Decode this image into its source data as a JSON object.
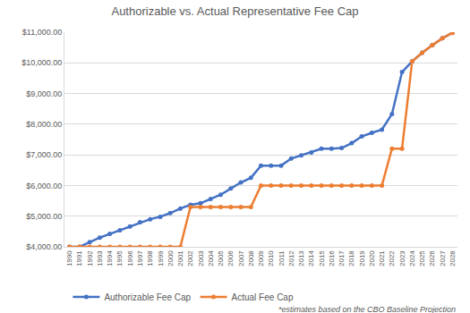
{
  "chart_data": {
    "type": "line",
    "title": "Authorizable vs. Actual Representative Fee Cap",
    "categories": [
      "1990",
      "1991",
      "1992",
      "1993",
      "1994",
      "1995",
      "1996",
      "1997",
      "1998",
      "1999",
      "2000",
      "2001",
      "2002",
      "2003",
      "2004",
      "2005",
      "2006",
      "2007",
      "2008",
      "2009",
      "2010",
      "2011",
      "2012",
      "2013",
      "2014",
      "2015",
      "2016",
      "2017",
      "2018",
      "2019",
      "2020",
      "2021",
      "2022",
      "2023",
      "2024",
      "2025",
      "2026",
      "2027",
      "2028"
    ],
    "series": [
      {
        "name": "Authorizable Fee Cap",
        "color": "#4472c4",
        "marker": "circle",
        "values": [
          4000,
          4000,
          4150,
          4300,
          4420,
          4540,
          4660,
          4800,
          4900,
          4980,
          5100,
          5250,
          5370,
          5420,
          5560,
          5700,
          5900,
          6100,
          6250,
          6650,
          6650,
          6650,
          6880,
          6980,
          7080,
          7200,
          7200,
          7220,
          7380,
          7600,
          7720,
          7820,
          8330,
          9700,
          10050,
          10330,
          10580,
          10800,
          10980
        ]
      },
      {
        "name": "Actual Fee Cap",
        "color": "#ed7d31",
        "marker": "circle",
        "values": [
          4000,
          4000,
          4000,
          4000,
          4000,
          4000,
          4000,
          4000,
          4000,
          4000,
          4000,
          4000,
          5300,
          5300,
          5300,
          5300,
          5300,
          5300,
          5300,
          6000,
          6000,
          6000,
          6000,
          6000,
          6000,
          6000,
          6000,
          6000,
          6000,
          6000,
          6000,
          6000,
          7200,
          7200,
          10050,
          10330,
          10580,
          10800,
          10980
        ]
      }
    ],
    "ylim": [
      4000,
      11000
    ],
    "yticks": [
      {
        "value": 4000,
        "label": "$4,000.00"
      },
      {
        "value": 5000,
        "label": "$5,000.00"
      },
      {
        "value": 6000,
        "label": "$6,000.00"
      },
      {
        "value": 7000,
        "label": "$7,000.00"
      },
      {
        "value": 8000,
        "label": "$8,000.00"
      },
      {
        "value": 9000,
        "label": "$9,000.00"
      },
      {
        "value": 10000,
        "label": "$10,000.00"
      },
      {
        "value": 11000,
        "label": "$11,000.00"
      }
    ],
    "grid": true,
    "legend": "bottom",
    "annotations": [
      "*estimates based on the CBO Baseline Projection"
    ]
  }
}
